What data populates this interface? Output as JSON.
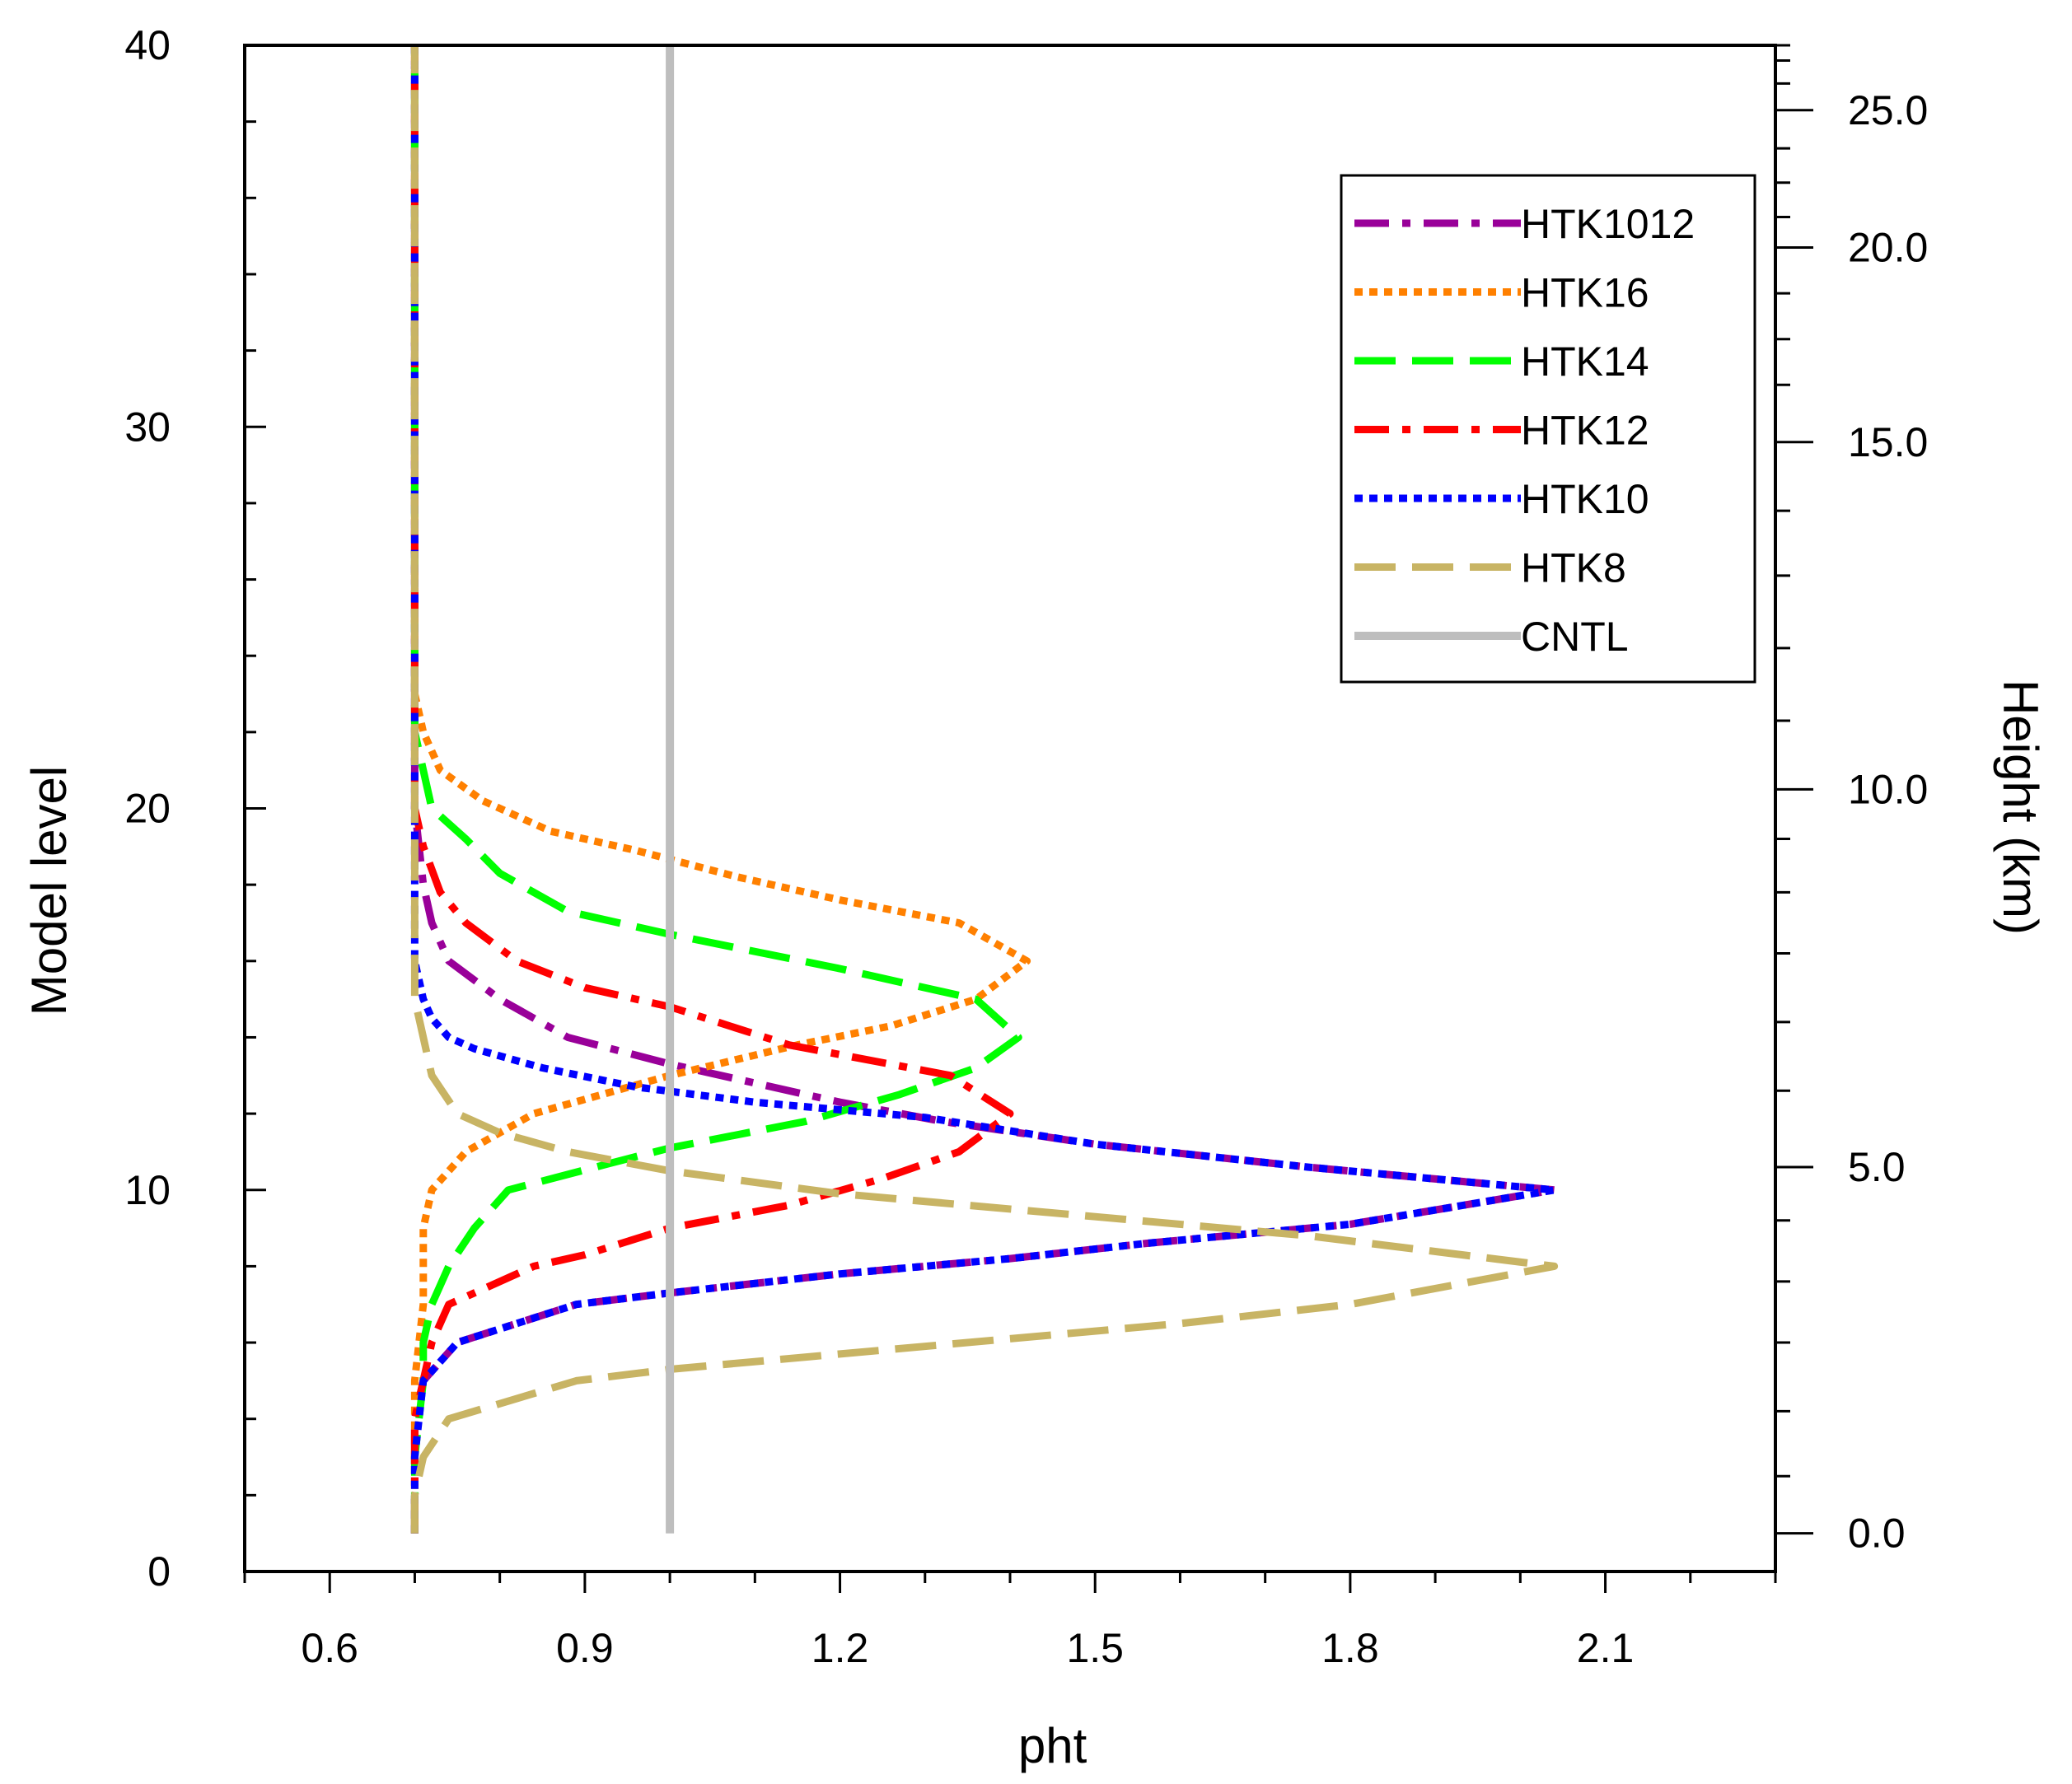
{
  "chart_data": {
    "type": "line",
    "orientation": "vertical-profile",
    "xlabel": "pht",
    "ylabel": "Model level",
    "y2label": "Height (km)",
    "xlim": [
      0.5,
      2.3
    ],
    "ylim": [
      0,
      40
    ],
    "x_ticks": [
      0.6,
      0.9,
      1.2,
      1.5,
      1.8,
      2.1
    ],
    "x_tick_labels": [
      "0.6",
      "0.9",
      "1.2",
      "1.5",
      "1.8",
      "2.1"
    ],
    "x_minor_step": 0.1,
    "y_ticks": [
      0,
      10,
      20,
      30,
      40
    ],
    "y_tick_labels": [
      "0",
      "10",
      "20",
      "30",
      "40"
    ],
    "y_minor_step": 2,
    "y2_ticks": [
      {
        "level": 1,
        "label": "0.0"
      },
      {
        "level": 10.6,
        "label": "5.0"
      },
      {
        "level": 20.5,
        "label": "10.0"
      },
      {
        "level": 29.6,
        "label": "15.0"
      },
      {
        "level": 34.7,
        "label": "20.0"
      },
      {
        "level": 38.3,
        "label": "25.0"
      }
    ],
    "y2_minor_levels": [
      2.5,
      4.2,
      6,
      7.6,
      9.2,
      12.6,
      14.4,
      16.2,
      17.8,
      19.2,
      22.3,
      24.2,
      26.1,
      27.8,
      31.1,
      32.3,
      33.5,
      35.5,
      36.4,
      37.3,
      39,
      39.6,
      40
    ],
    "legend_position": "top-right",
    "series": [
      {
        "name": "HTK1012",
        "color": "#990099",
        "dash": "dashdot",
        "points": [
          [
            0.7,
            1
          ],
          [
            0.7,
            2
          ],
          [
            0.7,
            3
          ],
          [
            0.7,
            4
          ],
          [
            0.71,
            5
          ],
          [
            0.75,
            6
          ],
          [
            0.89,
            7
          ],
          [
            1.0,
            7.3
          ],
          [
            1.2,
            7.8
          ],
          [
            1.4,
            8.2
          ],
          [
            1.56,
            8.6
          ],
          [
            1.8,
            9.1
          ],
          [
            2.04,
            10
          ],
          [
            1.75,
            10.6
          ],
          [
            1.5,
            11.2
          ],
          [
            1.32,
            11.8
          ],
          [
            1.2,
            12.3
          ],
          [
            1.1,
            12.8
          ],
          [
            1.0,
            13.3
          ],
          [
            0.88,
            14
          ],
          [
            0.8,
            15
          ],
          [
            0.74,
            16
          ],
          [
            0.72,
            17
          ],
          [
            0.71,
            18
          ],
          [
            0.7,
            20
          ],
          [
            0.7,
            25
          ],
          [
            0.7,
            30
          ],
          [
            0.7,
            35
          ],
          [
            0.7,
            40
          ]
        ]
      },
      {
        "name": "HTK16",
        "color": "#ff8000",
        "dash": "dotted",
        "points": [
          [
            0.7,
            1
          ],
          [
            0.7,
            3
          ],
          [
            0.7,
            5
          ],
          [
            0.71,
            7
          ],
          [
            0.71,
            9
          ],
          [
            0.72,
            10
          ],
          [
            0.76,
            11
          ],
          [
            0.84,
            12
          ],
          [
            1.0,
            13
          ],
          [
            1.15,
            13.8
          ],
          [
            1.26,
            14.3
          ],
          [
            1.36,
            15
          ],
          [
            1.42,
            16
          ],
          [
            1.34,
            17
          ],
          [
            1.2,
            17.6
          ],
          [
            1.08,
            18.2
          ],
          [
            0.96,
            18.9
          ],
          [
            0.86,
            19.4
          ],
          [
            0.78,
            20.2
          ],
          [
            0.73,
            21
          ],
          [
            0.71,
            22
          ],
          [
            0.7,
            23
          ],
          [
            0.7,
            25
          ],
          [
            0.7,
            30
          ],
          [
            0.7,
            35
          ],
          [
            0.7,
            40
          ]
        ]
      },
      {
        "name": "HTK14",
        "color": "#00ff00",
        "dash": "longdash",
        "points": [
          [
            0.7,
            1
          ],
          [
            0.7,
            3
          ],
          [
            0.71,
            5
          ],
          [
            0.71,
            6
          ],
          [
            0.72,
            7
          ],
          [
            0.74,
            8
          ],
          [
            0.77,
            9
          ],
          [
            0.81,
            10
          ],
          [
            0.93,
            10.7
          ],
          [
            1.0,
            11.1
          ],
          [
            1.16,
            11.8
          ],
          [
            1.27,
            12.5
          ],
          [
            1.36,
            13.2
          ],
          [
            1.41,
            14
          ],
          [
            1.36,
            15
          ],
          [
            1.2,
            15.8
          ],
          [
            1.0,
            16.7
          ],
          [
            0.88,
            17.3
          ],
          [
            0.8,
            18.3
          ],
          [
            0.76,
            19.2
          ],
          [
            0.72,
            20
          ],
          [
            0.71,
            21
          ],
          [
            0.7,
            22
          ],
          [
            0.7,
            23
          ],
          [
            0.7,
            25
          ],
          [
            0.7,
            30
          ],
          [
            0.7,
            35
          ],
          [
            0.7,
            40
          ]
        ]
      },
      {
        "name": "HTK12",
        "color": "#ff0000",
        "dash": "dashdot",
        "points": [
          [
            0.7,
            1
          ],
          [
            0.7,
            3
          ],
          [
            0.7,
            4
          ],
          [
            0.71,
            5
          ],
          [
            0.72,
            6
          ],
          [
            0.74,
            7
          ],
          [
            0.79,
            7.5
          ],
          [
            0.84,
            8
          ],
          [
            0.9,
            8.3
          ],
          [
            1.0,
            9
          ],
          [
            1.14,
            9.6
          ],
          [
            1.25,
            10.3
          ],
          [
            1.34,
            11
          ],
          [
            1.4,
            12
          ],
          [
            1.33,
            13
          ],
          [
            1.14,
            13.8
          ],
          [
            1.0,
            14.8
          ],
          [
            0.9,
            15.3
          ],
          [
            0.82,
            16
          ],
          [
            0.76,
            17
          ],
          [
            0.73,
            17.8
          ],
          [
            0.71,
            19
          ],
          [
            0.7,
            20
          ],
          [
            0.7,
            25
          ],
          [
            0.7,
            30
          ],
          [
            0.7,
            35
          ],
          [
            0.7,
            40
          ]
        ]
      },
      {
        "name": "HTK10",
        "color": "#0000ff",
        "dash": "dotted",
        "points": [
          [
            0.7,
            1
          ],
          [
            0.7,
            3
          ],
          [
            0.71,
            5
          ],
          [
            0.75,
            6
          ],
          [
            0.89,
            7
          ],
          [
            1.0,
            7.3
          ],
          [
            1.2,
            7.8
          ],
          [
            1.4,
            8.2
          ],
          [
            1.56,
            8.6
          ],
          [
            1.8,
            9.1
          ],
          [
            2.04,
            10
          ],
          [
            1.75,
            10.6
          ],
          [
            1.5,
            11.2
          ],
          [
            1.3,
            11.9
          ],
          [
            1.1,
            12.3
          ],
          [
            0.96,
            12.7
          ],
          [
            0.85,
            13.2
          ],
          [
            0.77,
            13.7
          ],
          [
            0.74,
            14
          ],
          [
            0.72,
            14.5
          ],
          [
            0.71,
            15
          ],
          [
            0.7,
            16
          ],
          [
            0.7,
            17
          ],
          [
            0.7,
            18
          ],
          [
            0.7,
            20
          ],
          [
            0.7,
            25
          ],
          [
            0.7,
            30
          ],
          [
            0.7,
            35
          ],
          [
            0.7,
            40
          ]
        ]
      },
      {
        "name": "HTK8",
        "color": "#c8b464",
        "dash": "longdash",
        "points": [
          [
            0.7,
            1
          ],
          [
            0.7,
            2
          ],
          [
            0.71,
            3
          ],
          [
            0.74,
            4
          ],
          [
            0.89,
            5
          ],
          [
            1.0,
            5.3
          ],
          [
            1.2,
            5.7
          ],
          [
            1.4,
            6.1
          ],
          [
            1.6,
            6.5
          ],
          [
            1.8,
            7
          ],
          [
            2.04,
            8
          ],
          [
            1.75,
            8.8
          ],
          [
            1.5,
            9.3
          ],
          [
            1.2,
            9.9
          ],
          [
            1.0,
            10.5
          ],
          [
            0.88,
            11
          ],
          [
            0.8,
            11.5
          ],
          [
            0.75,
            12
          ],
          [
            0.72,
            13
          ],
          [
            0.71,
            14
          ],
          [
            0.7,
            15
          ],
          [
            0.7,
            16
          ],
          [
            0.7,
            20
          ],
          [
            0.7,
            25
          ],
          [
            0.7,
            30
          ],
          [
            0.7,
            35
          ],
          [
            0.7,
            40
          ]
        ]
      },
      {
        "name": "CNTL",
        "color": "#bebebe",
        "dash": "solid",
        "points": [
          [
            1.0,
            1
          ],
          [
            1.0,
            40
          ]
        ]
      }
    ]
  }
}
